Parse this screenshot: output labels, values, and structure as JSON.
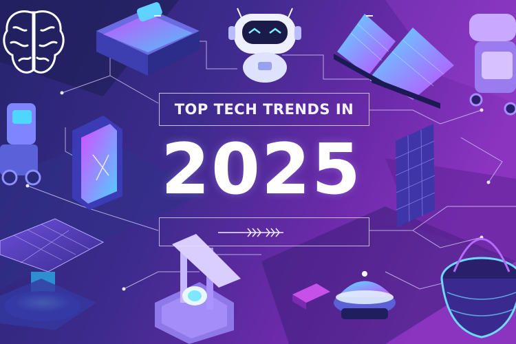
{
  "poster": {
    "headline": "TOP TECH TRENDS IN",
    "year": "2025",
    "decor_chevrons": "»»» »»»"
  },
  "colors": {
    "background_left": "#2b2a7a",
    "background_right": "#7a2bb5",
    "neon_cyan": "#4fd6ff",
    "neon_magenta": "#d04bff",
    "text": "#ffffff"
  },
  "illustrations": [
    {
      "name": "brain-icon"
    },
    {
      "name": "robot-head-icon"
    },
    {
      "name": "vr-headset-icon"
    },
    {
      "name": "solar-panel-icon"
    },
    {
      "name": "phone-device-icon"
    },
    {
      "name": "robot-arm-icon"
    },
    {
      "name": "drone-icon"
    },
    {
      "name": "glass-dome-icon"
    }
  ]
}
